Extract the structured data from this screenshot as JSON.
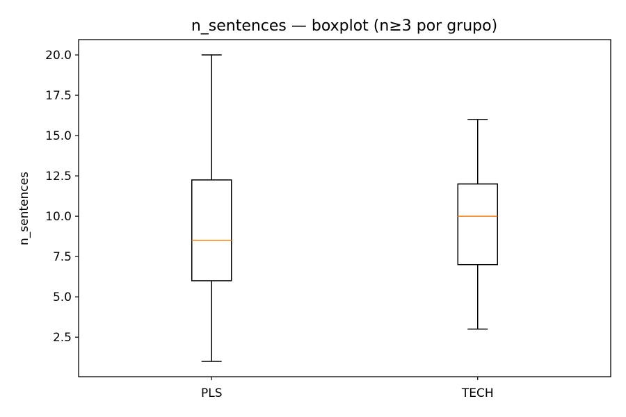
{
  "chart_data": {
    "type": "boxplot",
    "title": "n_sentences — boxplot (n≥3 por grupo)",
    "xlabel": "",
    "ylabel": "n_sentences",
    "categories": [
      "PLS",
      "TECH"
    ],
    "boxes": [
      {
        "category": "PLS",
        "whisker_low": 1.0,
        "q1": 6.0,
        "median": 8.5,
        "q3": 12.25,
        "whisker_high": 20.0
      },
      {
        "category": "TECH",
        "whisker_low": 3.0,
        "q1": 7.0,
        "median": 10.0,
        "q3": 12.0,
        "whisker_high": 16.0
      }
    ],
    "yticks": [
      2.5,
      5.0,
      7.5,
      10.0,
      12.5,
      15.0,
      17.5,
      20.0
    ],
    "ytick_labels": [
      "2.5",
      "5.0",
      "7.5",
      "10.0",
      "12.5",
      "15.0",
      "17.5",
      "20.0"
    ],
    "ylim": [
      0.05,
      20.95
    ],
    "grid": false,
    "colors": {
      "box": "#000000",
      "median": "#ff7f0e",
      "whisker": "#000000"
    }
  }
}
